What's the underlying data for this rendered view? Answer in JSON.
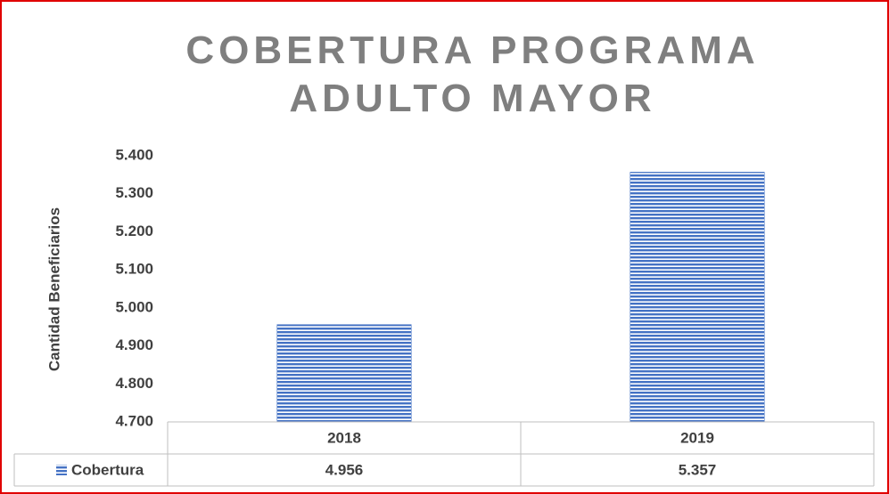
{
  "chart_data": {
    "type": "bar",
    "title": "COBERTURA PROGRAMA ADULTO MAYOR",
    "y_label": "Cantidad Beneficiarios",
    "categories": [
      "2018",
      "2019"
    ],
    "series": [
      {
        "name": "Cobertura",
        "color": "#4472c4",
        "values": [
          4956,
          5357
        ],
        "value_labels": [
          "4.956",
          "5.357"
        ]
      }
    ],
    "ylim": [
      4700,
      5400
    ],
    "yticks": [
      {
        "value": 4700,
        "label": "4.700"
      },
      {
        "value": 4800,
        "label": "4.800"
      },
      {
        "value": 4900,
        "label": "4.900"
      },
      {
        "value": 5000,
        "label": "5.000"
      },
      {
        "value": 5100,
        "label": "5.100"
      },
      {
        "value": 5200,
        "label": "5.200"
      },
      {
        "value": 5300,
        "label": "5.300"
      },
      {
        "value": 5400,
        "label": "5.400"
      }
    ],
    "grid": false,
    "data_table": true
  }
}
